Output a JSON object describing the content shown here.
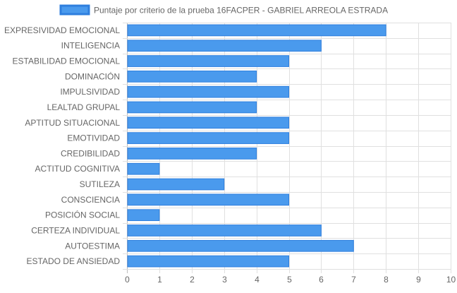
{
  "chart_data": {
    "type": "bar",
    "orientation": "horizontal",
    "categories": [
      "EXPRESIVIDAD EMOCIONAL",
      "INTELIGENCIA",
      "ESTABILIDAD EMOCIONAL",
      "DOMINACIÓN",
      "IMPULSIVIDAD",
      "LEALTAD GRUPAL",
      "APTITUD SITUACIONAL",
      "EMOTIVIDAD",
      "CREDIBILIDAD",
      "ACTITUD COGNITIVA",
      "SUTILEZA",
      "CONSCIENCIA",
      "POSICIÓN SOCIAL",
      "CERTEZA INDIVIDUAL",
      "AUTOESTIMA",
      "ESTADO DE ANSIEDAD"
    ],
    "series": [
      {
        "name": "Puntaje por criterio de la prueba 16FACPER - GABRIEL ARREOLA ESTRADA",
        "values": [
          8,
          6,
          5,
          4,
          5,
          4,
          5,
          5,
          4,
          1,
          3,
          5,
          1,
          6,
          7,
          5
        ],
        "fill": "#4a9aed",
        "stroke": "#2f7fde"
      }
    ],
    "xlim": [
      0,
      10
    ],
    "xticks": [
      "0",
      "1",
      "2",
      "3",
      "4",
      "5",
      "6",
      "7",
      "8",
      "9",
      "10"
    ],
    "grid": true,
    "legend_position": "top-center"
  }
}
